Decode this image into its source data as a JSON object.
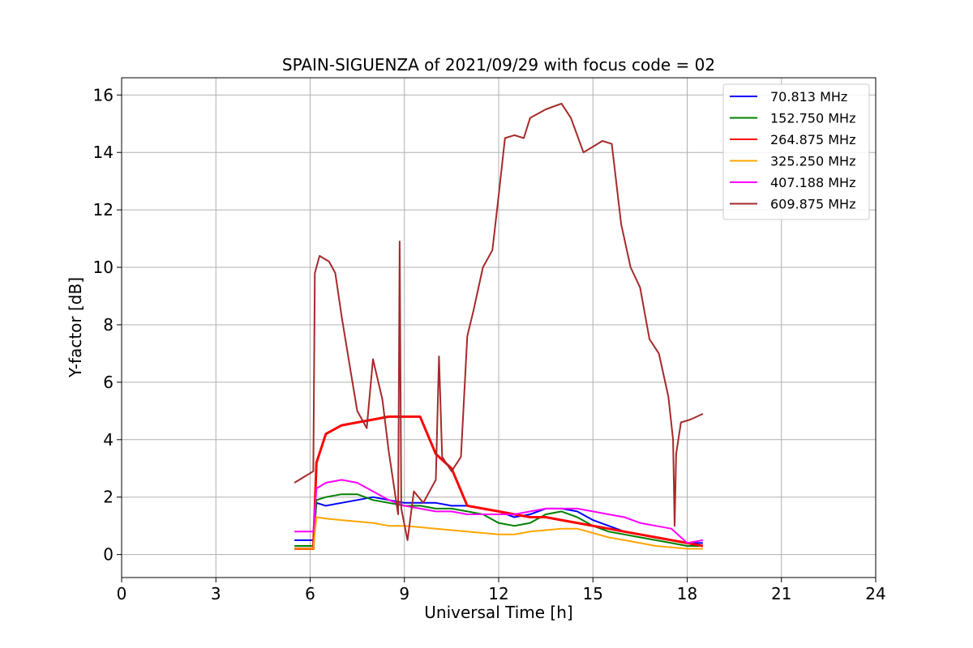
{
  "chart_data": {
    "type": "line",
    "title": "SPAIN-SIGUENZA of 2021/09/29 with focus code = 02",
    "xlabel": "Universal Time [h]",
    "ylabel": "Y-factor [dB]",
    "xlim": [
      0,
      24
    ],
    "ylim": [
      -0.8,
      16.6
    ],
    "xticks": [
      0,
      3,
      6,
      9,
      12,
      15,
      18,
      21,
      24
    ],
    "yticks": [
      0,
      2,
      4,
      6,
      8,
      10,
      12,
      14,
      16
    ],
    "grid": true,
    "legend_position": "top-right",
    "series": [
      {
        "name": " 70.813 MHz",
        "color": "#0000ff",
        "x": [
          5.5,
          6.1,
          6.2,
          6.5,
          7,
          7.5,
          8,
          8.5,
          9,
          9.5,
          10,
          10.5,
          11,
          11.5,
          12,
          12.5,
          13,
          13.5,
          14,
          14.5,
          15,
          15.5,
          16,
          16.5,
          17,
          17.5,
          18,
          18.5
        ],
        "y": [
          0.5,
          0.5,
          1.8,
          1.7,
          1.8,
          1.9,
          2.0,
          1.9,
          1.8,
          1.8,
          1.8,
          1.7,
          1.7,
          1.6,
          1.5,
          1.3,
          1.4,
          1.6,
          1.6,
          1.5,
          1.2,
          1.0,
          0.8,
          0.7,
          0.6,
          0.5,
          0.4,
          0.4
        ]
      },
      {
        "name": "152.750 MHz",
        "color": "#008000",
        "x": [
          5.5,
          6.1,
          6.2,
          6.5,
          7,
          7.5,
          8,
          8.5,
          9,
          9.5,
          10,
          10.5,
          11,
          11.5,
          12,
          12.5,
          13,
          13.5,
          14,
          14.5,
          15,
          15.5,
          16,
          16.5,
          17,
          17.5,
          18,
          18.5
        ],
        "y": [
          0.3,
          0.3,
          1.9,
          2.0,
          2.1,
          2.1,
          1.9,
          1.8,
          1.7,
          1.7,
          1.6,
          1.6,
          1.5,
          1.4,
          1.1,
          1.0,
          1.1,
          1.4,
          1.5,
          1.3,
          1.0,
          0.8,
          0.7,
          0.6,
          0.5,
          0.4,
          0.3,
          0.3
        ]
      },
      {
        "name": "264.875 MHz",
        "color": "#ff0000",
        "x": [
          5.5,
          6.1,
          6.2,
          6.5,
          7,
          7.5,
          8,
          8.5,
          9,
          9.5,
          10,
          10.5,
          11,
          11.5,
          12,
          12.5,
          13,
          13.5,
          14,
          14.5,
          15,
          15.5,
          16,
          16.5,
          17,
          17.5,
          18,
          18.5
        ],
        "y": [
          0.2,
          0.2,
          3.2,
          4.2,
          4.5,
          4.6,
          4.7,
          4.8,
          4.8,
          4.8,
          3.5,
          3.0,
          1.7,
          1.6,
          1.5,
          1.4,
          1.3,
          1.3,
          1.2,
          1.1,
          1.0,
          0.9,
          0.8,
          0.7,
          0.6,
          0.5,
          0.4,
          0.3
        ]
      },
      {
        "name": "325.250 MHz",
        "color": "#ffa500",
        "x": [
          5.5,
          6.1,
          6.2,
          6.5,
          7,
          7.5,
          8,
          8.5,
          9,
          9.5,
          10,
          10.5,
          11,
          11.5,
          12,
          12.5,
          13,
          13.5,
          14,
          14.5,
          15,
          15.5,
          16,
          16.5,
          17,
          17.5,
          18,
          18.5
        ],
        "y": [
          0.2,
          0.2,
          1.3,
          1.25,
          1.2,
          1.15,
          1.1,
          1.0,
          1.0,
          0.95,
          0.9,
          0.85,
          0.8,
          0.75,
          0.7,
          0.7,
          0.8,
          0.85,
          0.9,
          0.9,
          0.75,
          0.6,
          0.5,
          0.4,
          0.3,
          0.25,
          0.2,
          0.2
        ]
      },
      {
        "name": "407.188 MHz",
        "color": "#ff00ff",
        "x": [
          5.5,
          6.1,
          6.2,
          6.5,
          7,
          7.5,
          8,
          8.5,
          9,
          9.5,
          10,
          10.5,
          11,
          11.5,
          12,
          12.5,
          13,
          13.5,
          14,
          14.5,
          15,
          15.5,
          16,
          16.5,
          17,
          17.5,
          18,
          18.5
        ],
        "y": [
          0.8,
          0.8,
          2.3,
          2.5,
          2.6,
          2.5,
          2.2,
          1.9,
          1.7,
          1.6,
          1.5,
          1.5,
          1.4,
          1.4,
          1.4,
          1.4,
          1.5,
          1.6,
          1.6,
          1.6,
          1.5,
          1.4,
          1.3,
          1.1,
          1.0,
          0.9,
          0.4,
          0.5
        ]
      },
      {
        "name": "609.875 MHz",
        "color": "#a52a2a",
        "x": [
          5.5,
          5.8,
          6.1,
          6.15,
          6.3,
          6.6,
          6.8,
          7.0,
          7.3,
          7.5,
          7.8,
          8.0,
          8.3,
          8.5,
          8.8,
          8.85,
          8.9,
          9.1,
          9.3,
          9.6,
          10.0,
          10.1,
          10.2,
          10.5,
          10.8,
          11.0,
          11.2,
          11.5,
          11.8,
          12.0,
          12.2,
          12.5,
          12.8,
          13.0,
          13.5,
          14.0,
          14.3,
          14.7,
          15.0,
          15.3,
          15.6,
          15.9,
          16.2,
          16.5,
          16.8,
          17.1,
          17.4,
          17.55,
          17.6,
          17.65,
          17.8,
          18.1,
          18.5
        ],
        "y": [
          2.5,
          2.7,
          2.9,
          9.8,
          10.4,
          10.2,
          9.8,
          8.3,
          6.3,
          5.0,
          4.4,
          6.8,
          5.4,
          3.6,
          1.4,
          10.9,
          1.6,
          0.5,
          2.2,
          1.8,
          2.6,
          6.9,
          3.4,
          2.9,
          3.4,
          7.6,
          8.5,
          10.0,
          10.6,
          12.5,
          14.5,
          14.6,
          14.5,
          15.2,
          15.5,
          15.7,
          15.2,
          14.0,
          14.2,
          14.4,
          14.3,
          11.5,
          10.0,
          9.3,
          7.5,
          7.0,
          5.5,
          4.0,
          1.0,
          3.5,
          4.6,
          4.7,
          4.9
        ]
      }
    ]
  }
}
